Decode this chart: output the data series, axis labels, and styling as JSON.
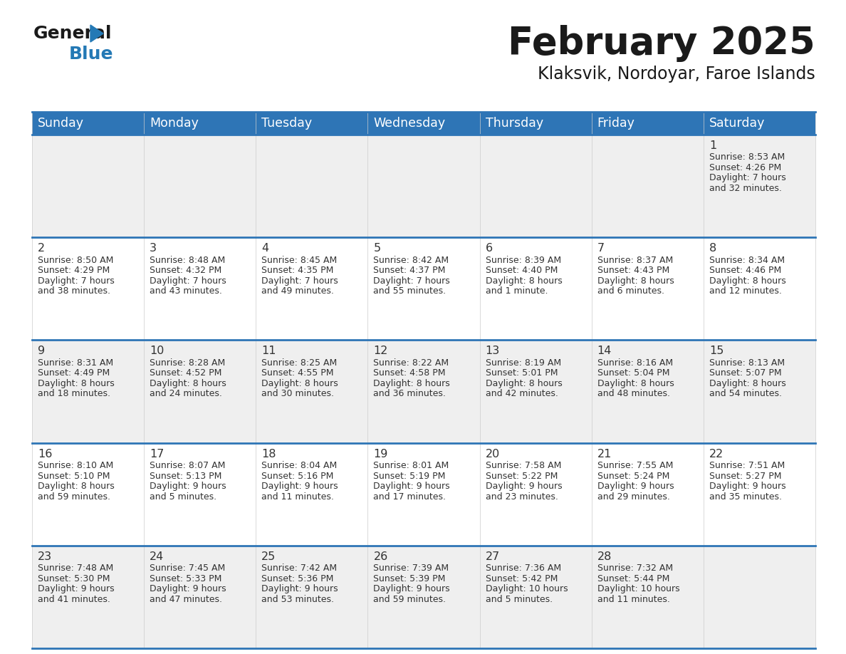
{
  "title": "February 2025",
  "subtitle": "Klaksvik, Nordoyar, Faroe Islands",
  "header_color": "#2E75B6",
  "header_text_color": "#FFFFFF",
  "cell_bg_odd": "#EFEFEF",
  "cell_bg_even": "#FFFFFF",
  "separator_color": "#2E75B6",
  "day_headers": [
    "Sunday",
    "Monday",
    "Tuesday",
    "Wednesday",
    "Thursday",
    "Friday",
    "Saturday"
  ],
  "days": [
    {
      "day": 1,
      "col": 6,
      "row": 0,
      "sunrise": "8:53 AM",
      "sunset": "4:26 PM",
      "daylight_line1": "Daylight: 7 hours",
      "daylight_line2": "and 32 minutes."
    },
    {
      "day": 2,
      "col": 0,
      "row": 1,
      "sunrise": "8:50 AM",
      "sunset": "4:29 PM",
      "daylight_line1": "Daylight: 7 hours",
      "daylight_line2": "and 38 minutes."
    },
    {
      "day": 3,
      "col": 1,
      "row": 1,
      "sunrise": "8:48 AM",
      "sunset": "4:32 PM",
      "daylight_line1": "Daylight: 7 hours",
      "daylight_line2": "and 43 minutes."
    },
    {
      "day": 4,
      "col": 2,
      "row": 1,
      "sunrise": "8:45 AM",
      "sunset": "4:35 PM",
      "daylight_line1": "Daylight: 7 hours",
      "daylight_line2": "and 49 minutes."
    },
    {
      "day": 5,
      "col": 3,
      "row": 1,
      "sunrise": "8:42 AM",
      "sunset": "4:37 PM",
      "daylight_line1": "Daylight: 7 hours",
      "daylight_line2": "and 55 minutes."
    },
    {
      "day": 6,
      "col": 4,
      "row": 1,
      "sunrise": "8:39 AM",
      "sunset": "4:40 PM",
      "daylight_line1": "Daylight: 8 hours",
      "daylight_line2": "and 1 minute."
    },
    {
      "day": 7,
      "col": 5,
      "row": 1,
      "sunrise": "8:37 AM",
      "sunset": "4:43 PM",
      "daylight_line1": "Daylight: 8 hours",
      "daylight_line2": "and 6 minutes."
    },
    {
      "day": 8,
      "col": 6,
      "row": 1,
      "sunrise": "8:34 AM",
      "sunset": "4:46 PM",
      "daylight_line1": "Daylight: 8 hours",
      "daylight_line2": "and 12 minutes."
    },
    {
      "day": 9,
      "col": 0,
      "row": 2,
      "sunrise": "8:31 AM",
      "sunset": "4:49 PM",
      "daylight_line1": "Daylight: 8 hours",
      "daylight_line2": "and 18 minutes."
    },
    {
      "day": 10,
      "col": 1,
      "row": 2,
      "sunrise": "8:28 AM",
      "sunset": "4:52 PM",
      "daylight_line1": "Daylight: 8 hours",
      "daylight_line2": "and 24 minutes."
    },
    {
      "day": 11,
      "col": 2,
      "row": 2,
      "sunrise": "8:25 AM",
      "sunset": "4:55 PM",
      "daylight_line1": "Daylight: 8 hours",
      "daylight_line2": "and 30 minutes."
    },
    {
      "day": 12,
      "col": 3,
      "row": 2,
      "sunrise": "8:22 AM",
      "sunset": "4:58 PM",
      "daylight_line1": "Daylight: 8 hours",
      "daylight_line2": "and 36 minutes."
    },
    {
      "day": 13,
      "col": 4,
      "row": 2,
      "sunrise": "8:19 AM",
      "sunset": "5:01 PM",
      "daylight_line1": "Daylight: 8 hours",
      "daylight_line2": "and 42 minutes."
    },
    {
      "day": 14,
      "col": 5,
      "row": 2,
      "sunrise": "8:16 AM",
      "sunset": "5:04 PM",
      "daylight_line1": "Daylight: 8 hours",
      "daylight_line2": "and 48 minutes."
    },
    {
      "day": 15,
      "col": 6,
      "row": 2,
      "sunrise": "8:13 AM",
      "sunset": "5:07 PM",
      "daylight_line1": "Daylight: 8 hours",
      "daylight_line2": "and 54 minutes."
    },
    {
      "day": 16,
      "col": 0,
      "row": 3,
      "sunrise": "8:10 AM",
      "sunset": "5:10 PM",
      "daylight_line1": "Daylight: 8 hours",
      "daylight_line2": "and 59 minutes."
    },
    {
      "day": 17,
      "col": 1,
      "row": 3,
      "sunrise": "8:07 AM",
      "sunset": "5:13 PM",
      "daylight_line1": "Daylight: 9 hours",
      "daylight_line2": "and 5 minutes."
    },
    {
      "day": 18,
      "col": 2,
      "row": 3,
      "sunrise": "8:04 AM",
      "sunset": "5:16 PM",
      "daylight_line1": "Daylight: 9 hours",
      "daylight_line2": "and 11 minutes."
    },
    {
      "day": 19,
      "col": 3,
      "row": 3,
      "sunrise": "8:01 AM",
      "sunset": "5:19 PM",
      "daylight_line1": "Daylight: 9 hours",
      "daylight_line2": "and 17 minutes."
    },
    {
      "day": 20,
      "col": 4,
      "row": 3,
      "sunrise": "7:58 AM",
      "sunset": "5:22 PM",
      "daylight_line1": "Daylight: 9 hours",
      "daylight_line2": "and 23 minutes."
    },
    {
      "day": 21,
      "col": 5,
      "row": 3,
      "sunrise": "7:55 AM",
      "sunset": "5:24 PM",
      "daylight_line1": "Daylight: 9 hours",
      "daylight_line2": "and 29 minutes."
    },
    {
      "day": 22,
      "col": 6,
      "row": 3,
      "sunrise": "7:51 AM",
      "sunset": "5:27 PM",
      "daylight_line1": "Daylight: 9 hours",
      "daylight_line2": "and 35 minutes."
    },
    {
      "day": 23,
      "col": 0,
      "row": 4,
      "sunrise": "7:48 AM",
      "sunset": "5:30 PM",
      "daylight_line1": "Daylight: 9 hours",
      "daylight_line2": "and 41 minutes."
    },
    {
      "day": 24,
      "col": 1,
      "row": 4,
      "sunrise": "7:45 AM",
      "sunset": "5:33 PM",
      "daylight_line1": "Daylight: 9 hours",
      "daylight_line2": "and 47 minutes."
    },
    {
      "day": 25,
      "col": 2,
      "row": 4,
      "sunrise": "7:42 AM",
      "sunset": "5:36 PM",
      "daylight_line1": "Daylight: 9 hours",
      "daylight_line2": "and 53 minutes."
    },
    {
      "day": 26,
      "col": 3,
      "row": 4,
      "sunrise": "7:39 AM",
      "sunset": "5:39 PM",
      "daylight_line1": "Daylight: 9 hours",
      "daylight_line2": "and 59 minutes."
    },
    {
      "day": 27,
      "col": 4,
      "row": 4,
      "sunrise": "7:36 AM",
      "sunset": "5:42 PM",
      "daylight_line1": "Daylight: 10 hours",
      "daylight_line2": "and 5 minutes."
    },
    {
      "day": 28,
      "col": 5,
      "row": 4,
      "sunrise": "7:32 AM",
      "sunset": "5:44 PM",
      "daylight_line1": "Daylight: 10 hours",
      "daylight_line2": "and 11 minutes."
    }
  ],
  "num_rows": 5,
  "num_cols": 7,
  "logo_color_general": "#1a1a1a",
  "logo_color_blue": "#2479b5",
  "title_color": "#1a1a1a",
  "subtitle_color": "#1a1a1a",
  "text_color": "#333333",
  "day_number_color": "#333333",
  "title_fontsize": 38,
  "subtitle_fontsize": 17,
  "header_fontsize": 12.5,
  "day_number_fontsize": 11.5,
  "cell_text_fontsize": 9,
  "separator_linewidth": 2.0
}
